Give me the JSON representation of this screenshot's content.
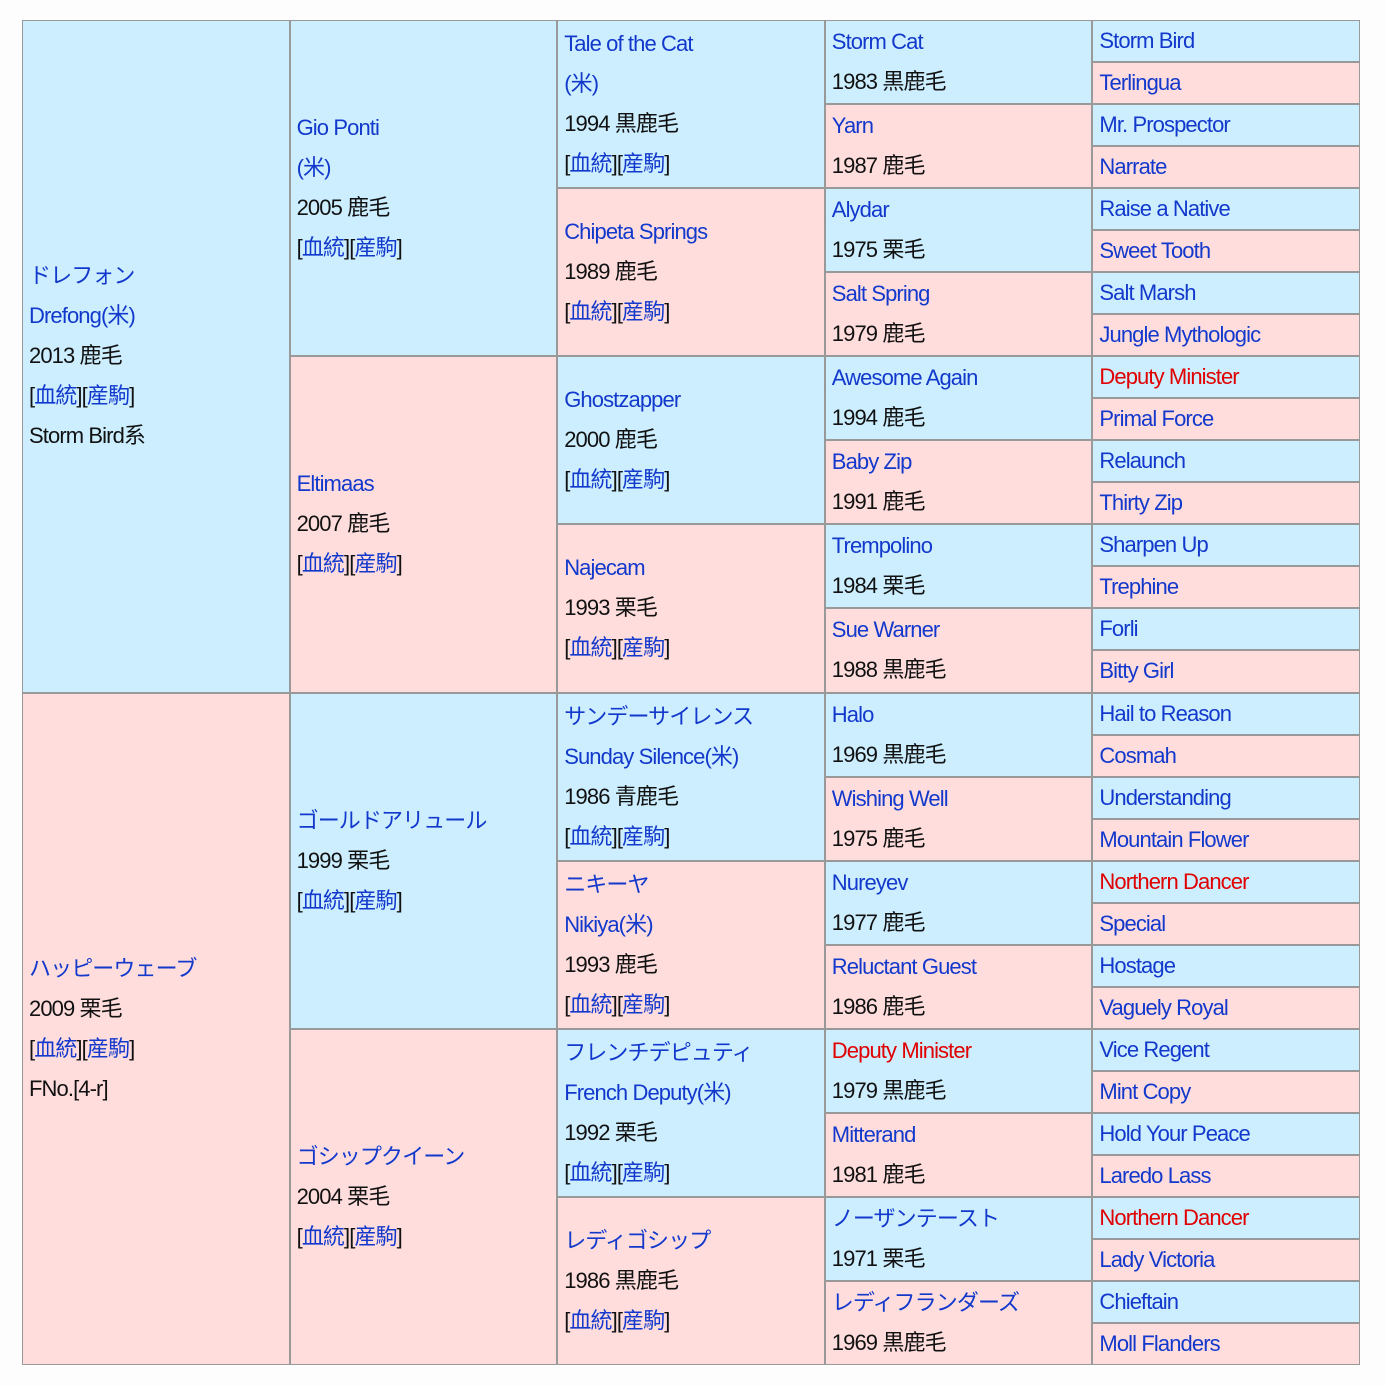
{
  "link_labels": {
    "pedigree": "血統",
    "offspring": "産駒"
  },
  "colors": {
    "sire_bg": "#cceeff",
    "dam_bg": "#ffdddd",
    "link": "#1239cc",
    "highlight": "#e00000",
    "border": "#999999"
  },
  "generations": [
    [
      {
        "name": [
          "ドレフォン",
          "Drefong(米)"
        ],
        "info": "2013 鹿毛",
        "links": true,
        "extra": "Storm Bird系"
      },
      {
        "name": [
          "ハッピーウェーブ"
        ],
        "info": "2009 栗毛",
        "links": true,
        "extra": "FNo.[4-r]"
      }
    ],
    [
      {
        "name": [
          "Gio Ponti",
          "(米)"
        ],
        "info": "2005 鹿毛",
        "links": true
      },
      {
        "name": [
          "Eltimaas"
        ],
        "info": "2007 鹿毛",
        "links": true
      },
      {
        "name": [
          "ゴールドアリュール"
        ],
        "info": "1999 栗毛",
        "links": true
      },
      {
        "name": [
          "ゴシップクイーン"
        ],
        "info": "2004 栗毛",
        "links": true
      }
    ],
    [
      {
        "name": [
          "Tale of the Cat",
          "(米)"
        ],
        "info": "1994 黒鹿毛",
        "links": true
      },
      {
        "name": [
          "Chipeta Springs"
        ],
        "info": "1989 鹿毛",
        "links": true
      },
      {
        "name": [
          "Ghostzapper"
        ],
        "info": "2000 鹿毛",
        "links": true
      },
      {
        "name": [
          "Najecam"
        ],
        "info": "1993 栗毛",
        "links": true
      },
      {
        "name": [
          "サンデーサイレンス",
          "Sunday Silence(米)"
        ],
        "info": "1986 青鹿毛",
        "links": true
      },
      {
        "name": [
          "ニキーヤ",
          "Nikiya(米)"
        ],
        "info": "1993 鹿毛",
        "links": true
      },
      {
        "name": [
          "フレンチデピュティ",
          "French Deputy(米)"
        ],
        "info": "1992 栗毛",
        "links": true
      },
      {
        "name": [
          "レディゴシップ"
        ],
        "info": "1986 黒鹿毛",
        "links": true
      }
    ],
    [
      {
        "name": [
          "Storm Cat"
        ],
        "info": "1983 黒鹿毛"
      },
      {
        "name": [
          "Yarn"
        ],
        "info": "1987 鹿毛"
      },
      {
        "name": [
          "Alydar"
        ],
        "info": "1975 栗毛"
      },
      {
        "name": [
          "Salt Spring"
        ],
        "info": "1979 鹿毛"
      },
      {
        "name": [
          "Awesome Again"
        ],
        "info": "1994 鹿毛"
      },
      {
        "name": [
          "Baby Zip"
        ],
        "info": "1991 鹿毛"
      },
      {
        "name": [
          "Trempolino"
        ],
        "info": "1984 栗毛"
      },
      {
        "name": [
          "Sue Warner"
        ],
        "info": "1988 黒鹿毛"
      },
      {
        "name": [
          "Halo"
        ],
        "info": "1969 黒鹿毛"
      },
      {
        "name": [
          "Wishing Well"
        ],
        "info": "1975 鹿毛"
      },
      {
        "name": [
          "Nureyev"
        ],
        "info": "1977 鹿毛"
      },
      {
        "name": [
          "Reluctant Guest"
        ],
        "info": "1986 鹿毛"
      },
      {
        "name": [
          "Deputy Minister"
        ],
        "info": "1979 黒鹿毛",
        "red": true
      },
      {
        "name": [
          "Mitterand"
        ],
        "info": "1981 鹿毛"
      },
      {
        "name": [
          "ノーザンテースト"
        ],
        "info": "1971 栗毛"
      },
      {
        "name": [
          "レディフランダーズ"
        ],
        "info": "1969 黒鹿毛"
      }
    ],
    [
      {
        "name": [
          "Storm Bird"
        ]
      },
      {
        "name": [
          "Terlingua"
        ]
      },
      {
        "name": [
          "Mr. Prospector"
        ]
      },
      {
        "name": [
          "Narrate"
        ]
      },
      {
        "name": [
          "Raise a Native"
        ]
      },
      {
        "name": [
          "Sweet Tooth"
        ]
      },
      {
        "name": [
          "Salt Marsh"
        ]
      },
      {
        "name": [
          "Jungle Mythologic"
        ]
      },
      {
        "name": [
          "Deputy Minister"
        ],
        "red": true
      },
      {
        "name": [
          "Primal Force"
        ]
      },
      {
        "name": [
          "Relaunch"
        ]
      },
      {
        "name": [
          "Thirty Zip"
        ]
      },
      {
        "name": [
          "Sharpen Up"
        ]
      },
      {
        "name": [
          "Trephine"
        ]
      },
      {
        "name": [
          "Forli"
        ]
      },
      {
        "name": [
          "Bitty Girl"
        ]
      },
      {
        "name": [
          "Hail to Reason"
        ]
      },
      {
        "name": [
          "Cosmah"
        ]
      },
      {
        "name": [
          "Understanding"
        ]
      },
      {
        "name": [
          "Mountain Flower"
        ]
      },
      {
        "name": [
          "Northern Dancer"
        ],
        "red": true
      },
      {
        "name": [
          "Special"
        ]
      },
      {
        "name": [
          "Hostage"
        ]
      },
      {
        "name": [
          "Vaguely Royal"
        ]
      },
      {
        "name": [
          "Vice Regent"
        ]
      },
      {
        "name": [
          "Mint Copy"
        ]
      },
      {
        "name": [
          "Hold Your Peace"
        ]
      },
      {
        "name": [
          "Laredo Lass"
        ]
      },
      {
        "name": [
          "Northern Dancer"
        ],
        "red": true
      },
      {
        "name": [
          "Lady Victoria"
        ]
      },
      {
        "name": [
          "Chieftain"
        ]
      },
      {
        "name": [
          "Moll Flanders"
        ]
      }
    ]
  ]
}
